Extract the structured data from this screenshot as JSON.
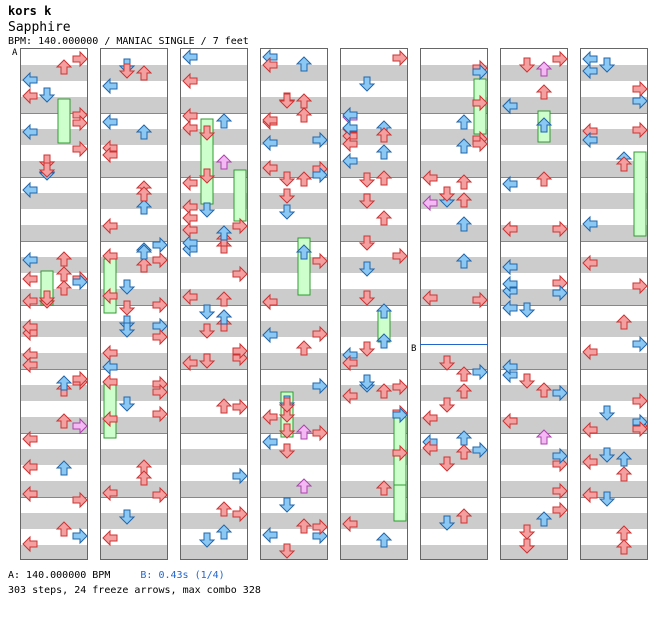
{
  "header": {
    "artist": "kors k",
    "title": "Sapphire",
    "meta": "BPM: 140.000000 / MANIAC SINGLE / 7 feet"
  },
  "markers": {
    "a": "A",
    "b": "B"
  },
  "footer": {
    "bpm_a": "A: 140.000000 BPM",
    "bpm_b": "B: 0.43s (1/4)",
    "stats": "303 steps, 24 freeze arrows, max combo 328"
  },
  "colors": {
    "red": "#f4a0a0",
    "red_stroke": "#cc3333",
    "blue": "#8cc8f4",
    "blue_stroke": "#2266aa",
    "pink": "#f4b8f4",
    "pink_stroke": "#aa44aa",
    "freeze": "#ccffcc",
    "freeze_stroke": "#339933",
    "stripe": "#cccccc"
  }
}
